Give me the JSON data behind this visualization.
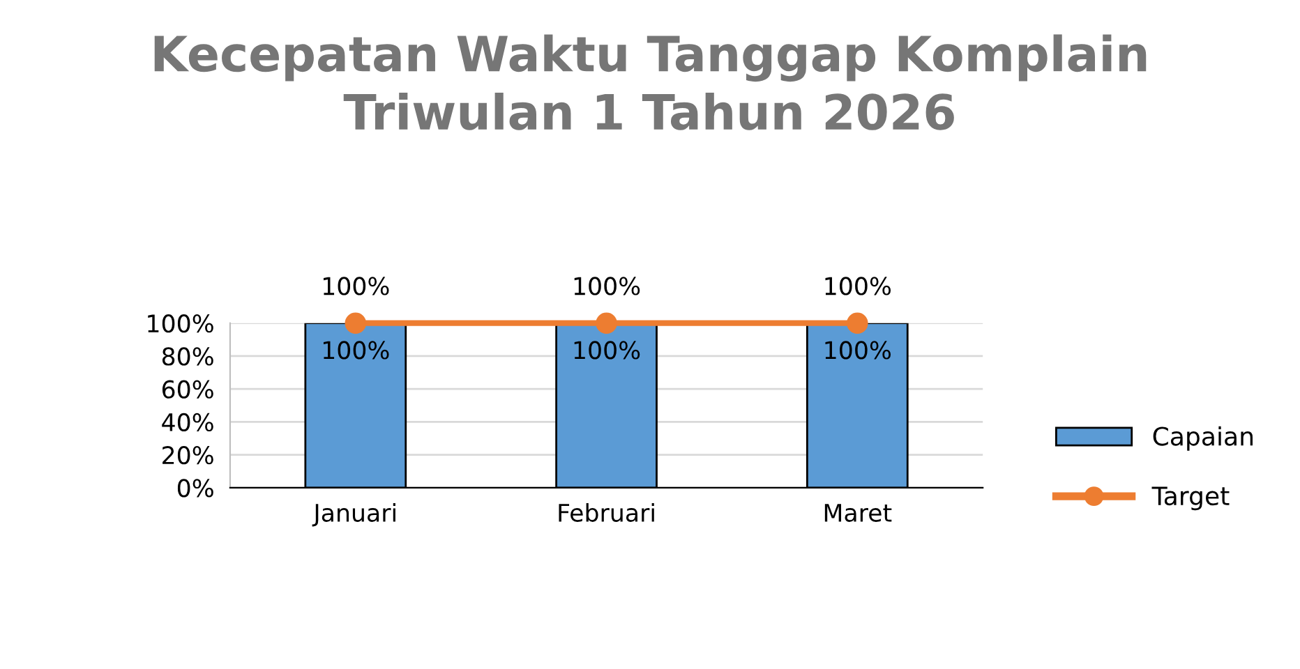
{
  "chart_data": {
    "type": "bar",
    "title": "Kecepatan Waktu Tanggap Komplain\nTriwulan 1 Tahun 2026",
    "categories": [
      "Januari",
      "Februari",
      "Maret"
    ],
    "series": [
      {
        "name": "Capaian",
        "color": "#5b9bd5",
        "values": [
          100,
          100,
          100
        ],
        "value_labels": [
          "100%",
          "100%",
          "100%"
        ]
      },
      {
        "name": "Target",
        "type": "line",
        "color": "#ed7d31",
        "values": [
          100,
          100,
          100
        ],
        "value_labels": [
          "100%",
          "100%",
          "100%"
        ],
        "marker": "circle"
      }
    ],
    "ylim": [
      0,
      100
    ],
    "yticks": [
      {
        "value": 0,
        "label": "0%"
      },
      {
        "value": 20,
        "label": "20%"
      },
      {
        "value": 40,
        "label": "40%"
      },
      {
        "value": 60,
        "label": "60%"
      },
      {
        "value": 80,
        "label": "80%"
      },
      {
        "value": 100,
        "label": "100%"
      }
    ],
    "grid": "y",
    "legend": "right"
  }
}
